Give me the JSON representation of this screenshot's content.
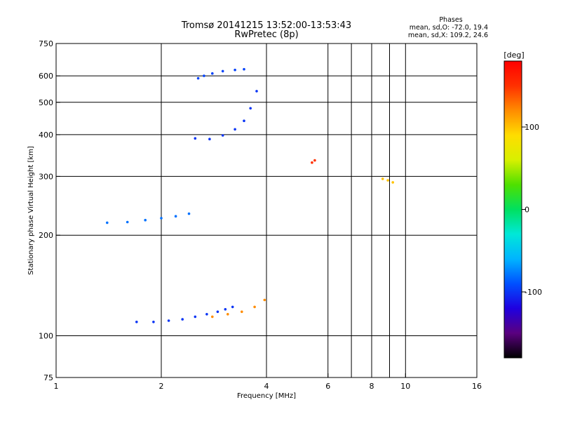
{
  "chart_data": {
    "type": "scatter",
    "title_line1": "Tromsø 20141215 13:52:00-13:53:43",
    "title_line2": "RwPretec (8p)",
    "info": {
      "heading": "Phases",
      "line_o": "mean, sd,O: -72.0, 19.4",
      "line_x": "mean, sd,X: 109.2, 24.6"
    },
    "xlabel": "Frequency [MHz]",
    "ylabel": "Stationary phase Virtual Height [km]",
    "x_scale": "log",
    "y_scale": "log",
    "xlim": [
      1,
      16
    ],
    "ylim": [
      75,
      750
    ],
    "x_ticks": [
      1,
      2,
      4,
      6,
      8,
      10,
      16
    ],
    "x_tick_labels": [
      "1",
      "2",
      "4",
      "6",
      "8",
      "10",
      "16"
    ],
    "x_gridlines": [
      2,
      4,
      6,
      7,
      8,
      9,
      10
    ],
    "y_ticks": [
      75,
      100,
      200,
      300,
      400,
      500,
      600,
      750
    ],
    "y_tick_labels": [
      "75",
      "100",
      "200",
      "300",
      "400",
      "500",
      "600",
      "750"
    ],
    "y_gridlines": [
      100,
      200,
      300,
      400,
      500,
      600
    ],
    "grid": true,
    "colorbar": {
      "label": "[deg]",
      "range": [
        -180,
        180
      ],
      "ticks": [
        100,
        0,
        -100
      ],
      "tick_labels": [
        "100",
        "0",
        "-100"
      ],
      "placement": "right",
      "colors": [
        "#000000",
        "#5a007f",
        "#1f00e0",
        "#0050ff",
        "#00b4ff",
        "#00e8d8",
        "#00e060",
        "#4ee000",
        "#d8f000",
        "#ffdd00",
        "#ff8c00",
        "#ff3000",
        "#ff0000"
      ]
    },
    "traces": [
      {
        "name": "",
        "phase": -100,
        "points": [
          [
            1.7,
            110
          ],
          [
            1.9,
            110
          ],
          [
            2.1,
            111
          ],
          [
            2.3,
            112
          ],
          [
            2.5,
            114
          ],
          [
            2.7,
            116
          ],
          [
            2.9,
            118
          ],
          [
            3.05,
            120
          ],
          [
            3.2,
            122
          ]
        ]
      },
      {
        "name": "",
        "phase": 120,
        "points": [
          [
            2.8,
            114
          ],
          [
            3.1,
            116
          ],
          [
            3.4,
            118
          ],
          [
            3.7,
            122
          ],
          [
            3.95,
            128
          ]
        ]
      },
      {
        "name": "",
        "phase": -80,
        "points": [
          [
            1.4,
            218
          ],
          [
            1.6,
            219
          ],
          [
            1.8,
            222
          ],
          [
            2.0,
            225
          ],
          [
            2.2,
            228
          ],
          [
            2.4,
            232
          ]
        ]
      },
      {
        "name": "",
        "phase": -95,
        "points": [
          [
            2.55,
            590
          ],
          [
            2.65,
            600
          ],
          [
            2.8,
            610
          ],
          [
            3.0,
            620
          ],
          [
            3.25,
            625
          ],
          [
            3.45,
            628
          ]
        ]
      },
      {
        "name": "",
        "phase": -100,
        "points": [
          [
            2.5,
            390
          ],
          [
            2.75,
            388
          ],
          [
            3.0,
            398
          ],
          [
            3.25,
            415
          ],
          [
            3.45,
            440
          ],
          [
            3.6,
            480
          ],
          [
            3.75,
            540
          ]
        ]
      },
      {
        "name": "",
        "phase": 150,
        "points": [
          [
            5.4,
            330
          ],
          [
            5.5,
            335
          ]
        ]
      },
      {
        "name": "",
        "phase": 100,
        "points": [
          [
            8.6,
            295
          ],
          [
            8.9,
            292
          ],
          [
            9.2,
            288
          ]
        ]
      }
    ]
  }
}
